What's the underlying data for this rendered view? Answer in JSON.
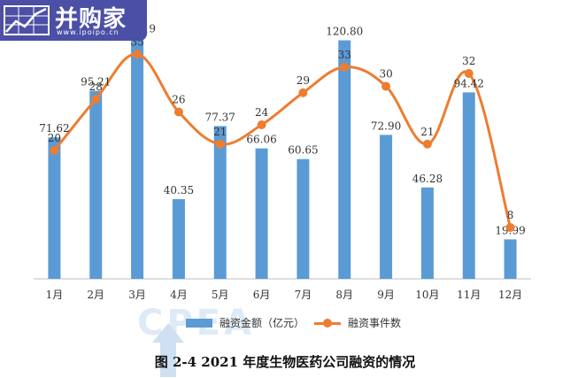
{
  "logo": {
    "name": "并购家",
    "url_text": "www.ipoipo.cn"
  },
  "chart_data": {
    "type": "bar",
    "categories": [
      "1月",
      "2月",
      "3月",
      "4月",
      "5月",
      "6月",
      "7月",
      "8月",
      "9月",
      "10月",
      "11月",
      "12月"
    ],
    "series": [
      {
        "name": "融资金额（亿元）",
        "type": "bar",
        "color": "#5b9bd5",
        "values": [
          71.62,
          95.21,
          122.19,
          40.35,
          77.37,
          66.06,
          60.65,
          120.8,
          72.9,
          46.28,
          94.42,
          19.99
        ],
        "labels": [
          "71.62",
          "95.21",
          "122.19",
          "40.35",
          "77.37",
          "66.06",
          "60.65",
          "120.80",
          "72.90",
          "46.28",
          "94.42",
          "19.99"
        ]
      },
      {
        "name": "融资事件数",
        "type": "line",
        "color": "#ed7d31",
        "values": [
          20,
          28,
          35,
          26,
          21,
          24,
          29,
          33,
          30,
          21,
          32,
          8
        ],
        "labels": [
          "20",
          "28",
          "35",
          "26",
          "21",
          "24",
          "29",
          "33",
          "30",
          "21",
          "32",
          "8"
        ]
      }
    ],
    "bar_ylim": [
      0,
      130
    ],
    "line_ylim": [
      0,
      40
    ],
    "legend_position": "bottom"
  },
  "caption": "图 2-4 2021 年度生物医药公司融资的情况",
  "watermark": "CPEA"
}
